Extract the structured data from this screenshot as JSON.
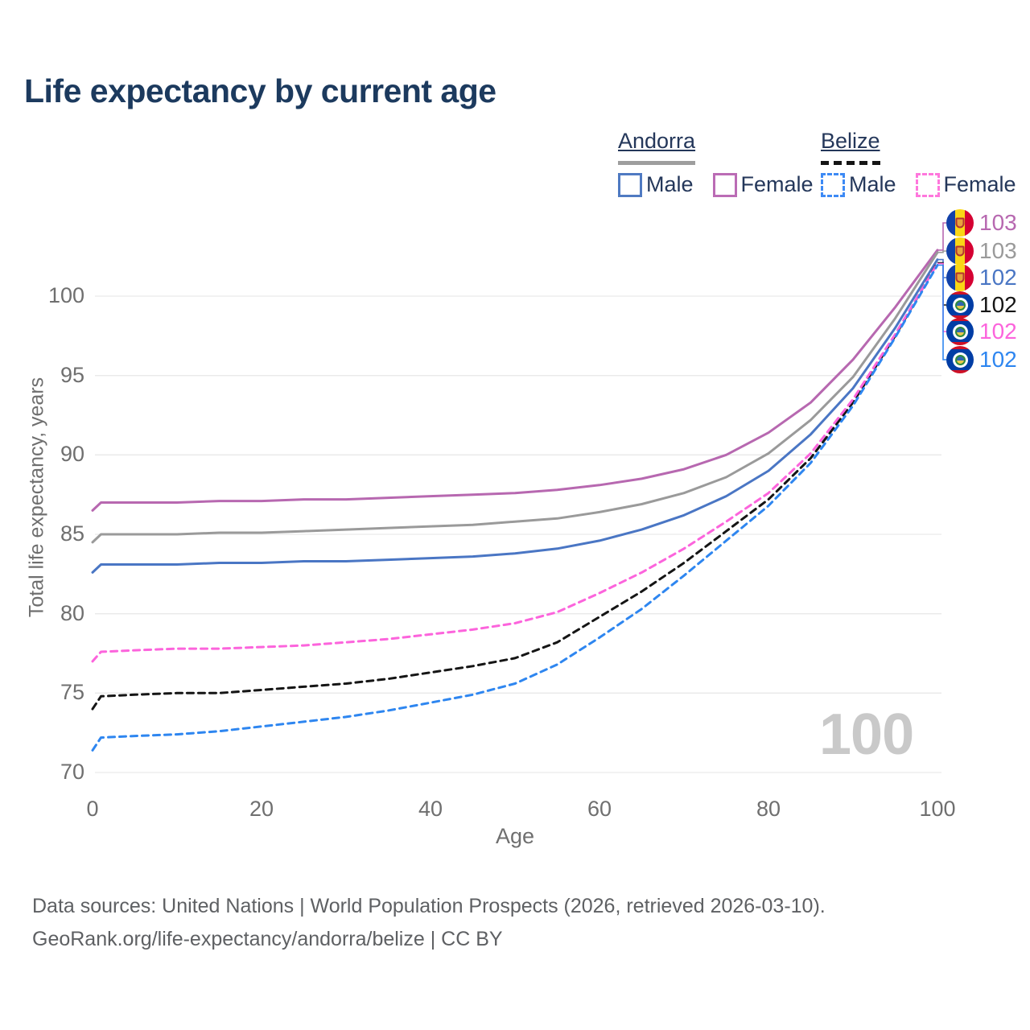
{
  "title": "Life expectancy by current age",
  "watermark_age": "100",
  "legend": {
    "groups": [
      {
        "country": "Andorra",
        "line_style": "solid",
        "underline_color": "#9e9e9e",
        "items": [
          {
            "label": "Male",
            "color": "#4f7ac2",
            "dashed": false
          },
          {
            "label": "Female",
            "color": "#bb6cb5",
            "dashed": false
          }
        ]
      },
      {
        "country": "Belize",
        "line_style": "dashed",
        "underline_color": "#151515",
        "items": [
          {
            "label": "Male",
            "color": "#3d8af5",
            "dashed": true
          },
          {
            "label": "Female",
            "color": "#ff77dd",
            "dashed": true
          }
        ]
      }
    ]
  },
  "footer": {
    "line1": "Data sources: United Nations | World Population Prospects (2026, retrieved 2026-03-10).",
    "line2": "GeoRank.org/life-expectancy/andorra/belize | CC BY"
  },
  "chart_data": {
    "type": "line",
    "title": "Life expectancy by current age",
    "xlabel": "Age",
    "ylabel": "Total life expectancy, years",
    "xlim": [
      0,
      100
    ],
    "ylim": [
      70,
      103.5
    ],
    "xticks": [
      0,
      20,
      40,
      60,
      80,
      100
    ],
    "yticks": [
      70,
      75,
      80,
      85,
      90,
      95,
      100
    ],
    "grid": "horizontal",
    "legend_position": "top-right",
    "x": [
      0,
      1,
      5,
      10,
      15,
      20,
      25,
      30,
      35,
      40,
      45,
      50,
      55,
      60,
      65,
      70,
      75,
      80,
      85,
      90,
      95,
      100
    ],
    "series": [
      {
        "name": "Andorra Female",
        "country": "Andorra",
        "sex": "Female",
        "color": "#b768b0",
        "dash": "solid",
        "flag": "andorra",
        "end_label": "103",
        "values": [
          86.5,
          87.0,
          87.0,
          87.0,
          87.1,
          87.1,
          87.2,
          87.2,
          87.3,
          87.4,
          87.5,
          87.6,
          87.8,
          88.1,
          88.5,
          89.1,
          90.0,
          91.4,
          93.3,
          96.0,
          99.3,
          102.9
        ]
      },
      {
        "name": "Andorra Both sexes",
        "country": "Andorra",
        "sex": "Both",
        "color": "#9a9a9a",
        "dash": "solid",
        "flag": "andorra",
        "end_label": "103",
        "values": [
          84.5,
          85.0,
          85.0,
          85.0,
          85.1,
          85.1,
          85.2,
          85.3,
          85.4,
          85.5,
          85.6,
          85.8,
          86.0,
          86.4,
          86.9,
          87.6,
          88.6,
          90.1,
          92.2,
          94.9,
          98.6,
          102.75
        ]
      },
      {
        "name": "Andorra Male",
        "country": "Andorra",
        "sex": "Male",
        "color": "#4a76c4",
        "dash": "solid",
        "flag": "andorra",
        "end_label": "102",
        "values": [
          82.6,
          83.1,
          83.1,
          83.1,
          83.2,
          83.2,
          83.3,
          83.3,
          83.4,
          83.5,
          83.6,
          83.8,
          84.1,
          84.6,
          85.3,
          86.2,
          87.4,
          89.0,
          91.3,
          94.2,
          98.0,
          102.3
        ]
      },
      {
        "name": "Belize Both sexes",
        "country": "Belize",
        "sex": "Both",
        "color": "#151515",
        "dash": "dashed",
        "flag": "belize",
        "end_label": "102",
        "values": [
          74.0,
          74.8,
          74.9,
          75.0,
          75.0,
          75.2,
          75.4,
          75.6,
          75.9,
          76.3,
          76.7,
          77.2,
          78.2,
          79.8,
          81.4,
          83.2,
          85.2,
          87.2,
          89.8,
          93.3,
          97.5,
          102.1
        ]
      },
      {
        "name": "Belize Female",
        "country": "Belize",
        "sex": "Female",
        "color": "#fc64dc",
        "dash": "dashed",
        "flag": "belize",
        "end_label": "102",
        "values": [
          77.0,
          77.6,
          77.7,
          77.8,
          77.8,
          77.9,
          78.0,
          78.2,
          78.4,
          78.7,
          79.0,
          79.4,
          80.1,
          81.3,
          82.6,
          84.1,
          85.8,
          87.6,
          90.1,
          93.5,
          97.6,
          102.05
        ]
      },
      {
        "name": "Belize Male",
        "country": "Belize",
        "sex": "Male",
        "color": "#2e86f0",
        "dash": "dashed",
        "flag": "belize",
        "end_label": "102",
        "values": [
          71.4,
          72.2,
          72.3,
          72.4,
          72.6,
          72.9,
          73.2,
          73.5,
          73.9,
          74.4,
          74.9,
          75.6,
          76.8,
          78.5,
          80.3,
          82.4,
          84.6,
          86.8,
          89.5,
          93.1,
          97.4,
          101.95
        ]
      }
    ]
  }
}
